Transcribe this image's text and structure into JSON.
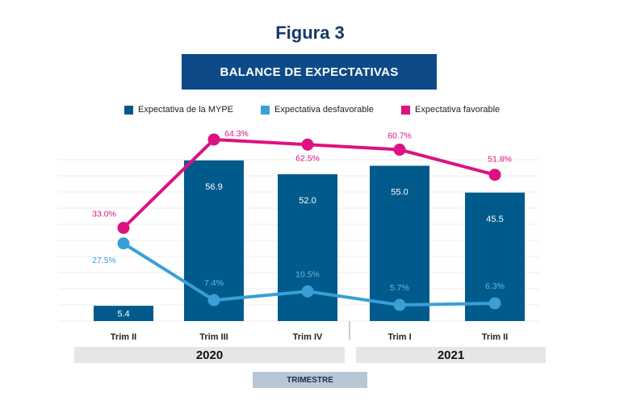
{
  "figure_label": "Figura 3",
  "colors": {
    "bar": "#005a8c",
    "desfavorable": "#3a9fd6",
    "favorable": "#dc1281",
    "title": "#14386b"
  },
  "chart_data": {
    "type": "bar",
    "title": "BALANCE DE EXPECTATIVAS",
    "xlabel": "TRIMESTRE",
    "ylabel": "",
    "ylim": [
      0,
      60
    ],
    "grid": true,
    "legend_placement": "top",
    "categories": [
      "Trim II",
      "Trim III",
      "Trim IV",
      "Trim I",
      "Trim II"
    ],
    "groups": [
      {
        "label": "2020",
        "span": 3
      },
      {
        "label": "2021",
        "span": 2
      }
    ],
    "series": [
      {
        "name": "Expectativa de la MYPE",
        "type": "bar",
        "values": [
          5.4,
          56.9,
          52.0,
          55.0,
          45.5
        ],
        "labels": [
          "5.4",
          "56.9",
          "52.0",
          "55.0",
          "45.5"
        ]
      },
      {
        "name": "Expectativa desfavorable",
        "type": "line",
        "values": [
          27.5,
          7.4,
          10.5,
          5.7,
          6.3
        ],
        "labels": [
          "27.5%",
          "7.4%",
          "10.5%",
          "5.7%",
          "6.3%"
        ]
      },
      {
        "name": "Expectativa favorable",
        "type": "line",
        "values": [
          33.0,
          64.3,
          62.5,
          60.7,
          51.8
        ],
        "labels": [
          "33.0%",
          "64.3%",
          "62.5%",
          "60.7%",
          "51.8%"
        ]
      }
    ]
  }
}
